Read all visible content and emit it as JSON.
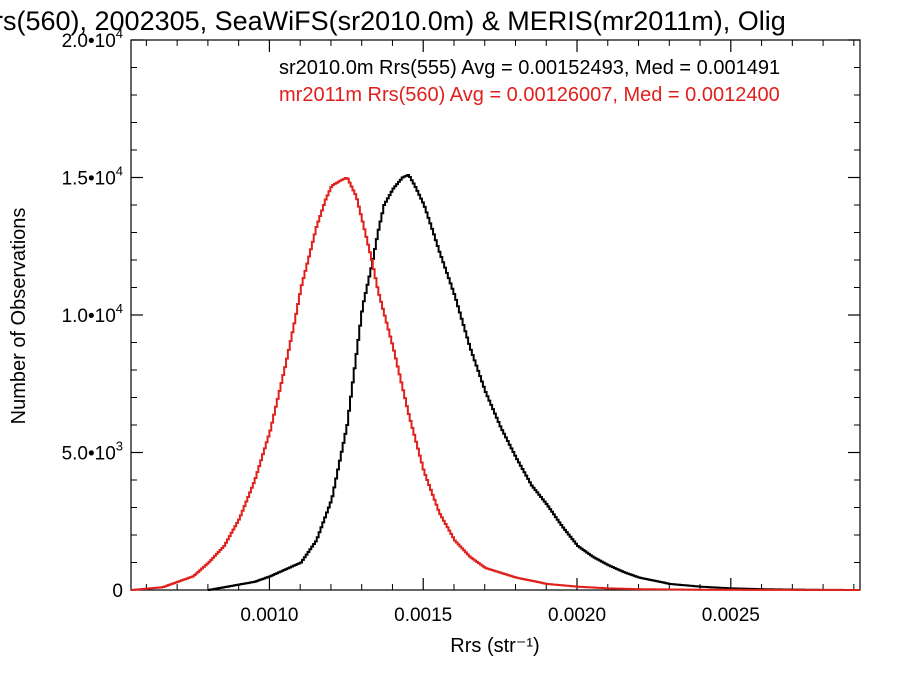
{
  "chart_data": {
    "type": "line",
    "title": "rs(560), 2002305, SeaWiFS(sr2010.0m) & MERIS(mr2011m), Olig",
    "xlabel": "Rrs (str⁻¹)",
    "ylabel": "Number of Observations",
    "xlim": [
      0.00055,
      0.00292
    ],
    "ylim": [
      0,
      20000
    ],
    "x_ticks": [
      {
        "value": 0.001,
        "label": "0.0010"
      },
      {
        "value": 0.0015,
        "label": "0.0015"
      },
      {
        "value": 0.002,
        "label": "0.0020"
      },
      {
        "value": 0.0025,
        "label": "0.0025"
      }
    ],
    "y_ticks": [
      {
        "value": 0,
        "label": "0",
        "exp": ""
      },
      {
        "value": 5000,
        "label": "5.0•10",
        "exp": "3"
      },
      {
        "value": 10000,
        "label": "1.0•10",
        "exp": "4"
      },
      {
        "value": 15000,
        "label": "1.5•10",
        "exp": "4"
      },
      {
        "value": 20000,
        "label": "2.0•10",
        "exp": "4"
      }
    ],
    "grid": false,
    "legend_position": "top-right",
    "legend": [
      "sr2010.0m Rrs(555) Avg = 0.00152493, Med = 0.001491",
      "mr2011m Rrs(560) Avg = 0.00126007, Med = 0.0012400"
    ],
    "series": [
      {
        "color": "#000000",
        "x": [
          0.0008,
          0.00085,
          0.0009,
          0.00095,
          0.001,
          0.00105,
          0.0011,
          0.00115,
          0.0012,
          0.00125,
          0.0013,
          0.00133,
          0.00135,
          0.00137,
          0.0014,
          0.00143,
          0.00145,
          0.00147,
          0.0015,
          0.00153,
          0.00155,
          0.0016,
          0.00165,
          0.0017,
          0.00175,
          0.0018,
          0.00185,
          0.0019,
          0.00195,
          0.002,
          0.00205,
          0.0021,
          0.00215,
          0.0022,
          0.0023,
          0.0024,
          0.0025,
          0.0026,
          0.0027,
          0.0028,
          0.00292
        ],
        "y": [
          0,
          100,
          200,
          300,
          500,
          750,
          1000,
          1800,
          3300,
          6000,
          10300,
          11800,
          13000,
          14000,
          14600,
          15000,
          15100,
          14700,
          14000,
          13000,
          12300,
          10700,
          8800,
          7200,
          5900,
          4800,
          3800,
          3100,
          2300,
          1600,
          1200,
          900,
          650,
          450,
          220,
          120,
          60,
          30,
          15,
          5,
          0
        ]
      },
      {
        "color": "#e0201c",
        "x": [
          0.00055,
          0.0006,
          0.00065,
          0.0007,
          0.00075,
          0.0008,
          0.00085,
          0.0009,
          0.00095,
          0.001,
          0.00105,
          0.00108,
          0.0011,
          0.00113,
          0.00115,
          0.00118,
          0.0012,
          0.00123,
          0.00125,
          0.00128,
          0.0013,
          0.00133,
          0.00135,
          0.0014,
          0.00145,
          0.0015,
          0.00155,
          0.0016,
          0.00165,
          0.0017,
          0.0018,
          0.0019,
          0.002,
          0.0021,
          0.0022,
          0.0024,
          0.0026,
          0.0028,
          0.00292
        ],
        "y": [
          0,
          50,
          100,
          300,
          500,
          1000,
          1600,
          2600,
          4000,
          5800,
          8200,
          9800,
          11000,
          12300,
          13200,
          14200,
          14700,
          14900,
          15000,
          14300,
          13400,
          12000,
          10900,
          8800,
          6400,
          4300,
          2800,
          1800,
          1200,
          800,
          450,
          220,
          120,
          60,
          30,
          10,
          5,
          0,
          0
        ]
      }
    ]
  }
}
